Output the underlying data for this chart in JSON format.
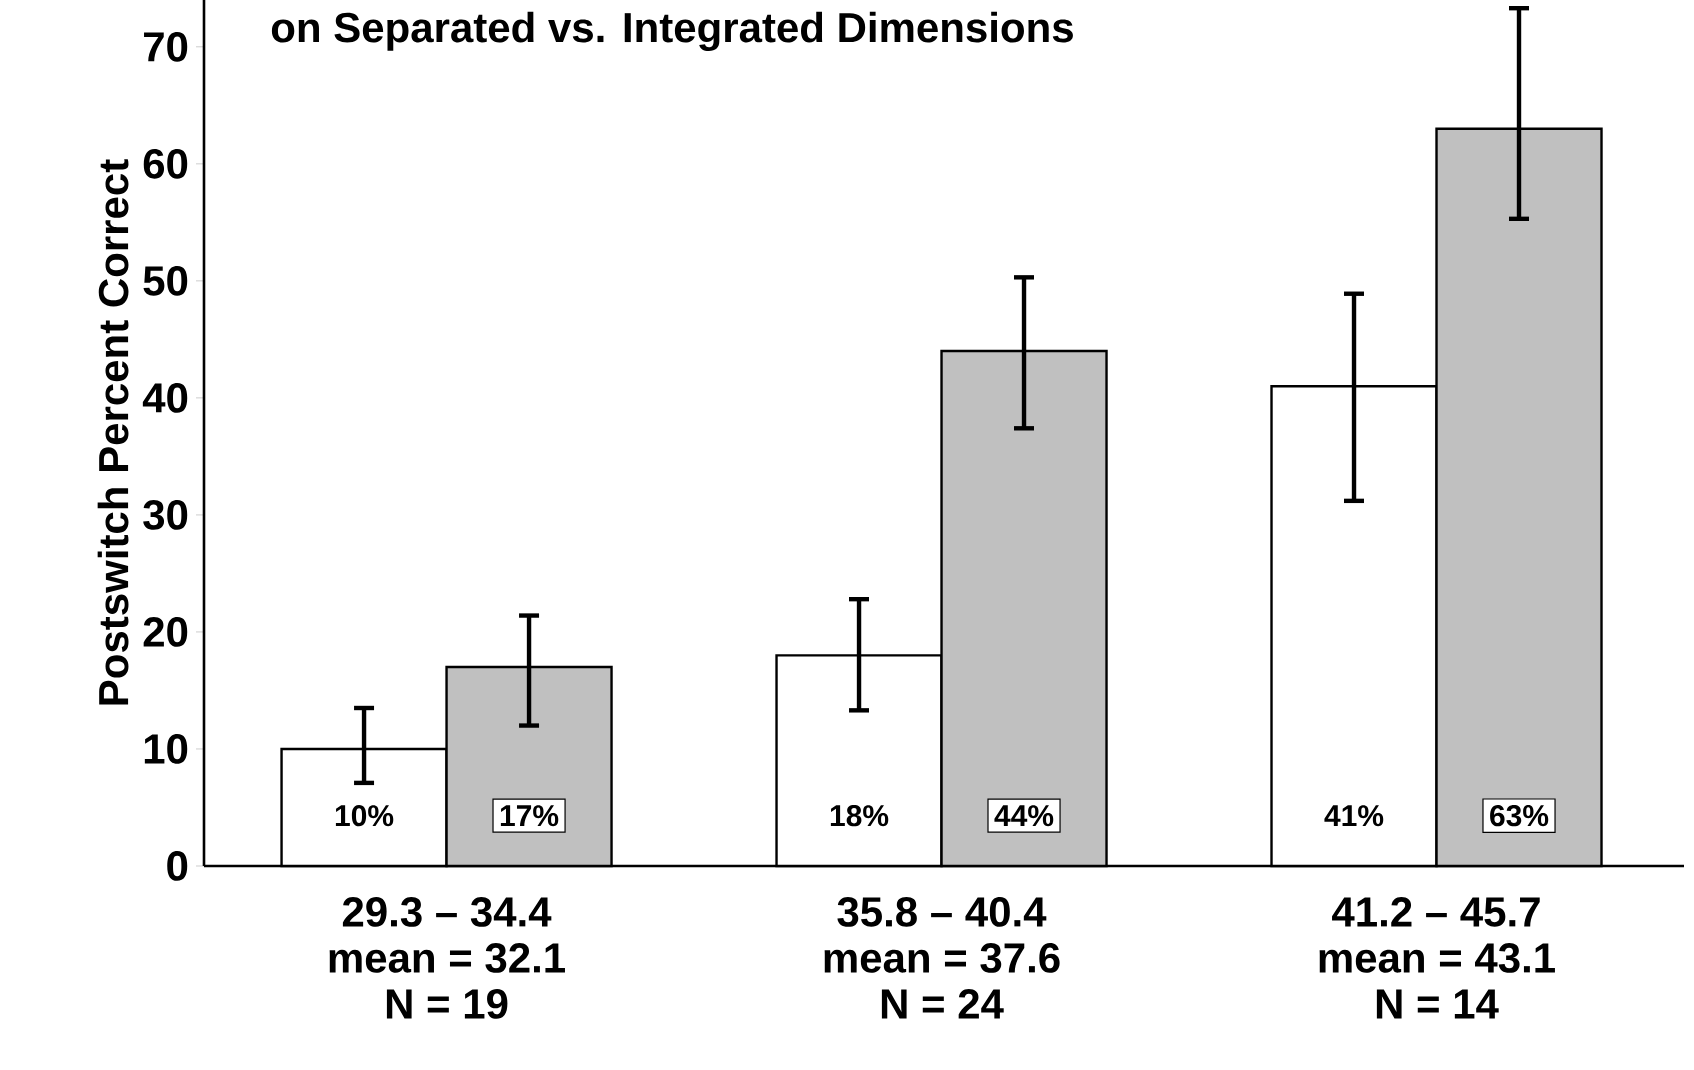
{
  "chart_data": {
    "type": "bar",
    "title": "on Separated vs. Integrated Dimensions",
    "ylabel": "Postswitch  Percent  Correct",
    "categories": [
      "29.3 – 34.4",
      "35.8 – 40.4",
      "41.2 – 45.7"
    ],
    "annotations": [
      "mean = 32.1",
      "N = 19",
      "mean = 37.6",
      "N = 24",
      "mean = 43.1",
      "N = 14"
    ],
    "series": [
      {
        "color": "#ffffff",
        "values": [
          10,
          18,
          41
        ],
        "errors": [
          [
            7.1,
            13.5
          ],
          [
            13.3,
            22.8
          ],
          [
            31.2,
            48.9
          ]
        ],
        "value_labels": [
          "10%",
          "18%",
          "41%"
        ]
      },
      {
        "color": "#c0c0c0",
        "values": [
          17,
          44,
          63
        ],
        "errors": [
          [
            12.0,
            21.4
          ],
          [
            37.4,
            50.3
          ],
          [
            55.3,
            73.3
          ]
        ],
        "value_labels": [
          "17%",
          "44%",
          "63%"
        ]
      }
    ],
    "ylim": [
      0,
      74
    ],
    "yticks": [
      0,
      10,
      20,
      30,
      40,
      50,
      60,
      70
    ],
    "grid": false
  }
}
